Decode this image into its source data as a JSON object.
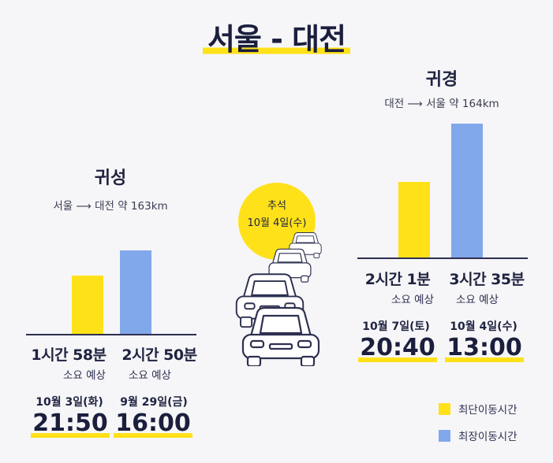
{
  "title": "서울 - 대전",
  "colors": {
    "shortest": "#ffe11a",
    "longest": "#82a8ec",
    "accent": "#ffe11a"
  },
  "holiday": {
    "label": "추석",
    "date": "10월 4일(수)"
  },
  "legend": {
    "shortest": "최단이동시간",
    "longest": "최장이동시간"
  },
  "chart_data": [
    {
      "type": "bar",
      "title": "귀성",
      "subtitle": "서울 ⟶ 대전 약 163km",
      "ylim": [
        0,
        220
      ],
      "series": [
        {
          "name": "최단이동시간",
          "value_minutes": 118,
          "duration": "1시간 58분",
          "note": "소요 예상",
          "date": "10월 3일(화)",
          "time": "21:50"
        },
        {
          "name": "최장이동시간",
          "value_minutes": 170,
          "duration": "2시간 50분",
          "note": "소요 예상",
          "date": "9월 29일(금)",
          "time": "16:00"
        }
      ]
    },
    {
      "type": "bar",
      "title": "귀경",
      "subtitle": "대전 ⟶ 서울 약 164km",
      "ylim": [
        0,
        220
      ],
      "series": [
        {
          "name": "최단이동시간",
          "value_minutes": 121,
          "duration": "2시간 1분",
          "note": "소요 예상",
          "date": "10월 7일(토)",
          "time": "20:40"
        },
        {
          "name": "최장이동시간",
          "value_minutes": 215,
          "duration": "3시간 35분",
          "note": "소요 예상",
          "date": "10월 4일(수)",
          "time": "13:00"
        }
      ]
    }
  ]
}
